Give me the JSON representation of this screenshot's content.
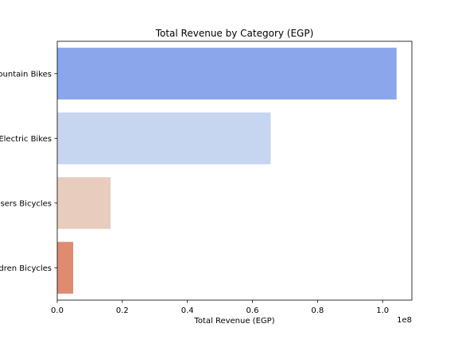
{
  "chart_data": {
    "type": "bar",
    "orientation": "horizontal",
    "title": "Total Revenue by Category (EGP)",
    "xlabel": "Total Revenue (EGP)",
    "ylabel": "",
    "categories": [
      "Mountain Bikes",
      "Electric Bikes",
      "Cruisers Bicycles",
      "Children Bicycles"
    ],
    "values": [
      104300000,
      65600000,
      16400000,
      4900000
    ],
    "colors": [
      "#8ba6ea",
      "#c6d5f0",
      "#e8cdbf",
      "#de8b70"
    ],
    "xlim": [
      0,
      109000000
    ],
    "xticks": [
      0,
      20000000,
      40000000,
      60000000,
      80000000,
      100000000
    ],
    "xtick_labels": [
      "0.0",
      "0.2",
      "0.4",
      "0.6",
      "0.8",
      "1.0"
    ],
    "axis_offset_label": "1e8",
    "grid": false,
    "legend": false
  }
}
